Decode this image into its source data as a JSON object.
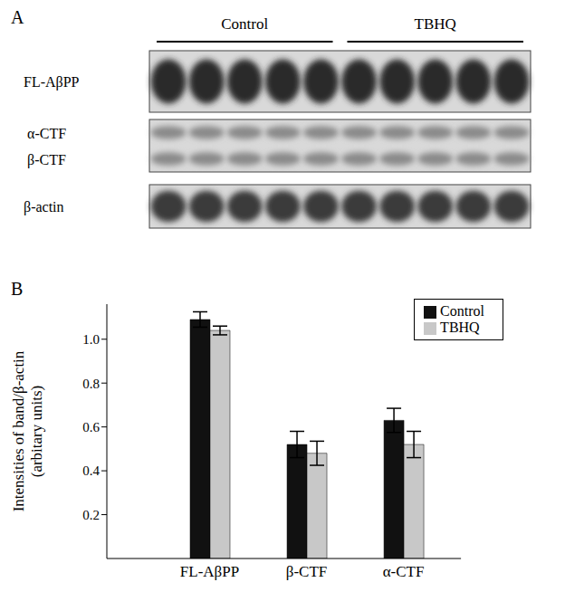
{
  "panel_labels": [
    "A",
    "B"
  ],
  "blot": {
    "groups": [
      {
        "name": "Control",
        "lanes": 5
      },
      {
        "name": "TBHQ",
        "lanes": 5
      }
    ],
    "blots": [
      {
        "rows": [
          "FL-AβPP"
        ]
      },
      {
        "rows": [
          "α-CTF",
          "β-CTF"
        ]
      },
      {
        "rows": [
          "β-actin"
        ]
      }
    ]
  },
  "chart_data": {
    "type": "bar",
    "categories": [
      "FL-AβPP",
      "β-CTF",
      "α-CTF"
    ],
    "series": [
      {
        "name": "Control",
        "color": "#111111",
        "values": [
          1.09,
          0.52,
          0.63
        ],
        "errors": [
          0.035,
          0.06,
          0.055
        ]
      },
      {
        "name": "TBHQ",
        "color": "#c8c8c8",
        "values": [
          1.04,
          0.48,
          0.52
        ],
        "errors": [
          0.02,
          0.055,
          0.06
        ]
      }
    ],
    "ylabel": "Intensities of band/β-actin\n(arbitary units)",
    "ylim": [
      0,
      1.16
    ],
    "yticks": [
      0.2,
      0.4,
      0.6,
      0.8,
      {
        "value": 1,
        "label": "1.0"
      }
    ],
    "legend": "upper right"
  }
}
